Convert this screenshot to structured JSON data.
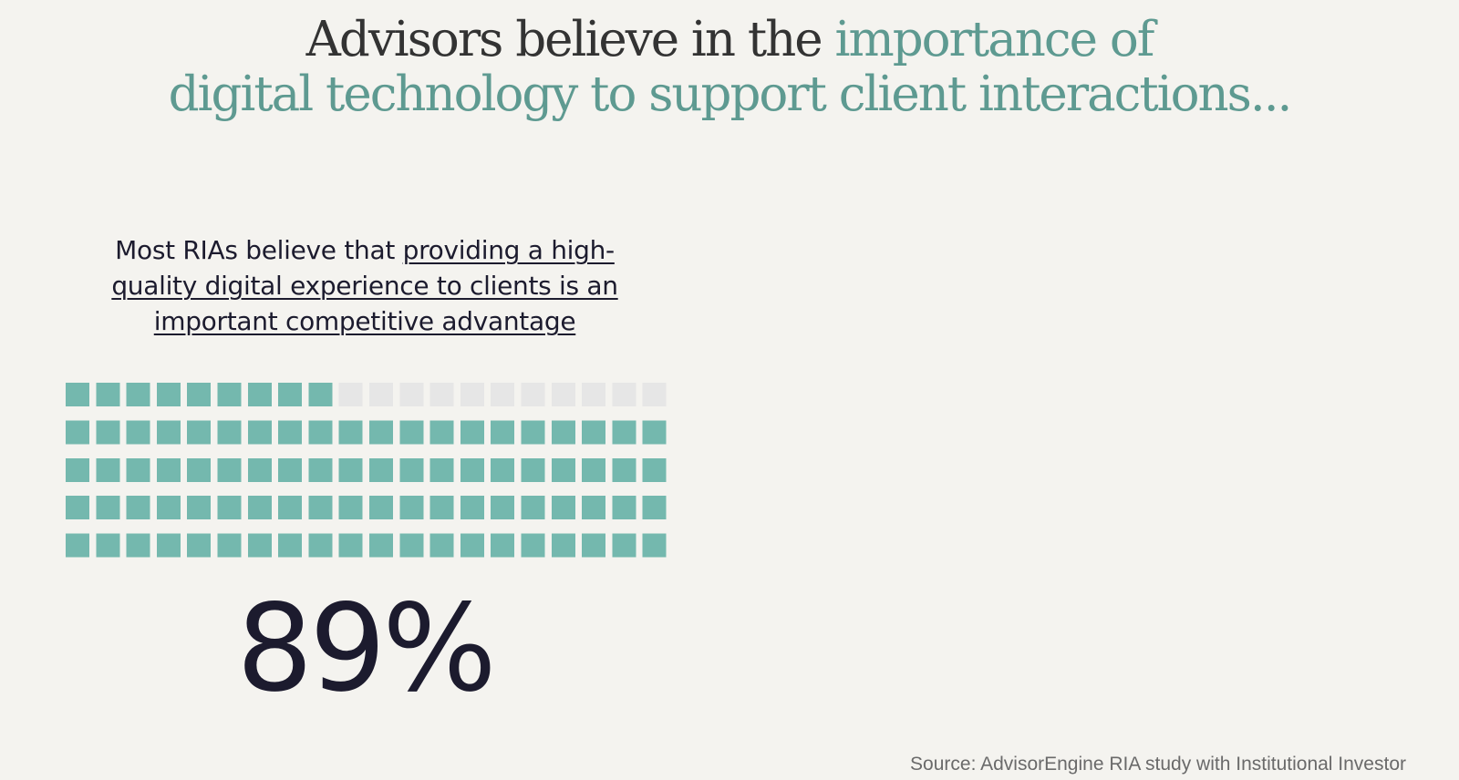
{
  "headline": {
    "lead": "Advisors believe in the",
    "accent_line1": "importance of",
    "accent_line2": "digital technology to support client interactions..."
  },
  "stat": {
    "caption_lead": "Most RIAs believe that",
    "caption_emphasis": "providing a high-quality digital experience to clients is an important competitive advantage",
    "value_label": "89%"
  },
  "source": "Source: AdvisorEngine RIA study with Institutional Investor",
  "chart_data": {
    "type": "waffle",
    "rows": 5,
    "columns": 20,
    "total": 100,
    "filled": 89,
    "value_percent": 89,
    "fill_order": "bottom-rows-first",
    "colors": {
      "filled": "#74b8ae",
      "empty": "#e6e6e6",
      "accent_text": "#5e9a91",
      "dark_text": "#1c1b2e",
      "background": "#f4f3ef"
    }
  }
}
